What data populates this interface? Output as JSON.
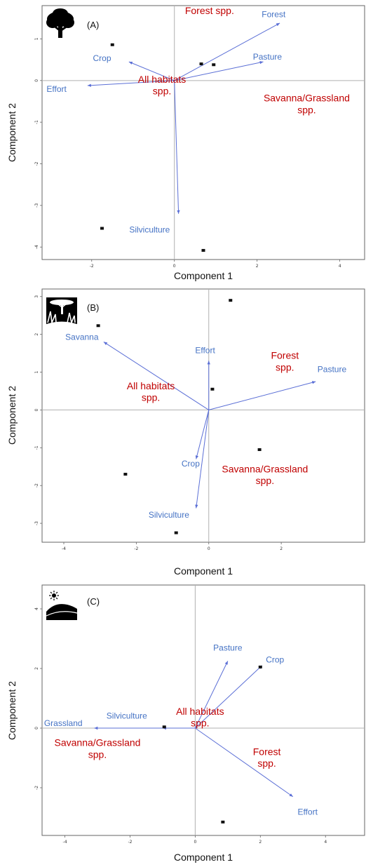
{
  "chart_data": [
    {
      "type": "scatter",
      "panel": "(A)",
      "icon": "tree-icon",
      "xlabel": "Component 1",
      "ylabel": "Component 2",
      "xlim": [
        -3.2,
        4.6
      ],
      "ylim": [
        -4.3,
        1.8
      ],
      "x_ticks": [
        -2,
        0,
        2,
        4
      ],
      "y_ticks": [
        1,
        0,
        -1,
        -2,
        -3,
        -4
      ],
      "vectors": [
        {
          "name": "Forest",
          "x": 2.55,
          "y": 1.38
        },
        {
          "name": "Pasture",
          "x": 2.15,
          "y": 0.45
        },
        {
          "name": "Crop",
          "x": -1.1,
          "y": 0.45
        },
        {
          "name": "Effort",
          "x": -2.1,
          "y": -0.12
        },
        {
          "name": "Silviculture",
          "x": 0.1,
          "y": -3.2
        }
      ],
      "vector_labels": [
        {
          "text": "Forest",
          "x": 2.4,
          "y": 1.52
        },
        {
          "text": "Pasture",
          "x": 2.25,
          "y": 0.5
        },
        {
          "text": "Crop",
          "x": -1.75,
          "y": 0.47
        },
        {
          "text": "Effort",
          "x": -2.85,
          "y": -0.27
        },
        {
          "text": "Silviculture",
          "x": -0.6,
          "y": -3.65
        }
      ],
      "groups": [
        {
          "lines": [
            "Forest spp."
          ],
          "x": 0.85,
          "y": 1.6
        },
        {
          "lines": [
            "All habitats",
            "spp."
          ],
          "x": -0.3,
          "y": -0.05
        },
        {
          "lines": [
            "Savanna/Grassland",
            "spp."
          ],
          "x": 3.2,
          "y": -0.5
        }
      ],
      "points": [
        {
          "x": -1.5,
          "y": 0.86
        },
        {
          "x": 0.65,
          "y": 0.4
        },
        {
          "x": 0.95,
          "y": 0.38
        },
        {
          "x": -1.75,
          "y": -3.55
        },
        {
          "x": 0.7,
          "y": -4.08
        }
      ]
    },
    {
      "type": "scatter",
      "panel": "(B)",
      "icon": "savanna-icon",
      "xlabel": "Component 1",
      "ylabel": "Component 2",
      "xlim": [
        -4.6,
        4.3
      ],
      "ylim": [
        -3.5,
        3.2
      ],
      "x_ticks": [
        -4,
        -2,
        0,
        2
      ],
      "y_ticks": [
        3,
        2,
        1,
        0,
        -1,
        -2,
        -3
      ],
      "vectors": [
        {
          "name": "Savanna",
          "x": -2.9,
          "y": 1.8
        },
        {
          "name": "Effort",
          "x": 0.0,
          "y": 1.3
        },
        {
          "name": "Pasture",
          "x": 2.95,
          "y": 0.75
        },
        {
          "name": "Crop",
          "x": -0.35,
          "y": -1.3
        },
        {
          "name": "Silviculture",
          "x": -0.35,
          "y": -2.6
        }
      ],
      "vector_labels": [
        {
          "text": "Savanna",
          "x": -3.5,
          "y": 1.85
        },
        {
          "text": "Effort",
          "x": -0.1,
          "y": 1.5
        },
        {
          "text": "Pasture",
          "x": 3.4,
          "y": 1.0
        },
        {
          "text": "Crop",
          "x": -0.5,
          "y": -1.5
        },
        {
          "text": "Silviculture",
          "x": -1.1,
          "y": -2.85
        }
      ],
      "groups": [
        {
          "lines": [
            "Forest",
            "spp."
          ],
          "x": 2.1,
          "y": 1.35
        },
        {
          "lines": [
            "All habitats",
            "spp."
          ],
          "x": -1.6,
          "y": 0.55
        },
        {
          "lines": [
            "Savanna/Grassland",
            "spp."
          ],
          "x": 1.55,
          "y": -1.65
        }
      ],
      "points": [
        {
          "x": -3.05,
          "y": 2.23
        },
        {
          "x": 0.6,
          "y": 2.9
        },
        {
          "x": 0.1,
          "y": 0.55
        },
        {
          "x": 1.4,
          "y": -1.05
        },
        {
          "x": -2.3,
          "y": -1.7
        },
        {
          "x": -0.9,
          "y": -3.25
        }
      ]
    },
    {
      "type": "scatter",
      "panel": "(C)",
      "icon": "grassland-sun-icon",
      "xlabel": "Component 1",
      "ylabel": "Component 2",
      "xlim": [
        -4.7,
        5.2
      ],
      "ylim": [
        -3.6,
        4.8
      ],
      "x_ticks": [
        -4,
        -2,
        0,
        2,
        4
      ],
      "y_ticks": [
        4,
        2,
        0,
        -2
      ],
      "vectors": [
        {
          "name": "Grassland",
          "x": -3.1,
          "y": 0.0
        },
        {
          "name": "Silviculture",
          "x": -1.0,
          "y": 0.0
        },
        {
          "name": "Pasture",
          "x": 1.0,
          "y": 2.25
        },
        {
          "name": "Crop",
          "x": 2.05,
          "y": 2.1
        },
        {
          "name": "Effort",
          "x": 3.0,
          "y": -2.3
        }
      ],
      "vector_labels": [
        {
          "text": "Grassland",
          "x": -4.05,
          "y": 0.07
        },
        {
          "text": "Silviculture",
          "x": -2.1,
          "y": 0.32
        },
        {
          "text": "Pasture",
          "x": 1.0,
          "y": 2.6
        },
        {
          "text": "Crop",
          "x": 2.45,
          "y": 2.2
        },
        {
          "text": "Effort",
          "x": 3.45,
          "y": -2.9
        }
      ],
      "groups": [
        {
          "lines": [
            "All habitats",
            "spp."
          ],
          "x": 0.15,
          "y": 0.45
        },
        {
          "lines": [
            "Savanna/Grassland",
            "spp."
          ],
          "x": -3.0,
          "y": -0.6
        },
        {
          "lines": [
            "Forest",
            "spp."
          ],
          "x": 2.2,
          "y": -0.9
        }
      ],
      "points": [
        {
          "x": 2.0,
          "y": 2.05
        },
        {
          "x": -0.95,
          "y": 0.04
        },
        {
          "x": 0.85,
          "y": -3.15
        }
      ]
    }
  ]
}
